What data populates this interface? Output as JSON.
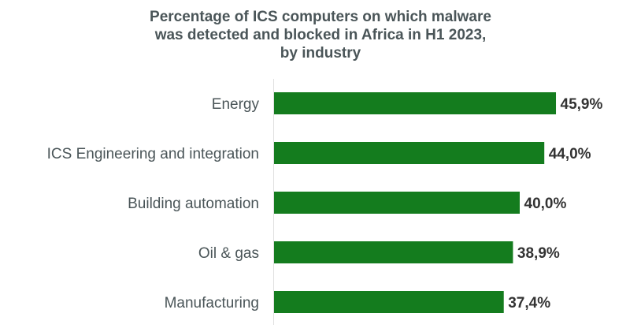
{
  "chart_data": {
    "type": "bar",
    "orientation": "horizontal",
    "title_lines": [
      "Percentage of ICS computers on which malware",
      "was detected and blocked in Africa in H1 2023,",
      "by industry"
    ],
    "categories": [
      "Energy",
      "ICS Engineering and integration",
      "Building automation",
      "Oil & gas",
      "Manufacturing"
    ],
    "values": [
      45.9,
      44.0,
      40.0,
      38.9,
      37.4
    ],
    "value_labels": [
      "45,9%",
      "44,0%",
      "40,0%",
      "38,9%",
      "37,4%"
    ],
    "xlim": [
      0,
      50
    ],
    "unit": "%",
    "grid": false,
    "legend": "none",
    "bar_color": "#147c1e",
    "label_color": "#4a5558",
    "value_label_color": "#333333",
    "axis_color": "#e0e0e0"
  }
}
